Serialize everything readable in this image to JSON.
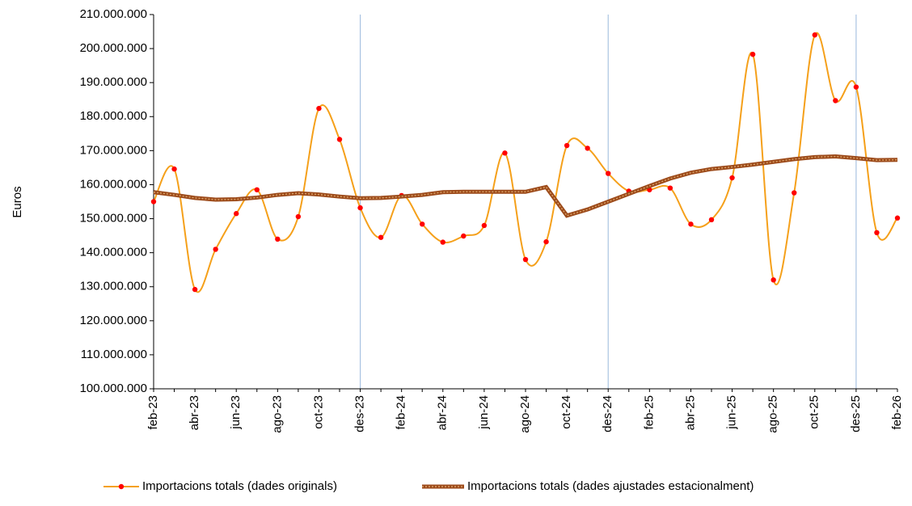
{
  "chart_data": {
    "type": "line",
    "ylabel": "Euros",
    "categories": [
      "feb-23",
      null,
      "abr-23",
      null,
      "jun-23",
      null,
      "ago-23",
      null,
      "oct-23",
      null,
      "des-23",
      null,
      "feb-24",
      null,
      "abr-24",
      null,
      "jun-24",
      null,
      "ago-24",
      null,
      "oct-24",
      null,
      "des-24",
      null,
      "feb-25",
      null,
      "abr-25",
      null,
      "jun-25",
      null,
      "ago-25",
      null,
      "oct-25",
      null,
      "des-25",
      null,
      "feb-26"
    ],
    "series": [
      {
        "name": "Importacions totals (dades originals)",
        "color": "#f5a01a",
        "marker_color": "#ff0000",
        "smooth": true,
        "values": [
          155000000,
          164600000,
          129200000,
          141000000,
          151500000,
          158500000,
          144000000,
          150600000,
          182400000,
          173300000,
          153200000,
          144500000,
          156800000,
          148400000,
          143100000,
          144900000,
          148000000,
          169300000,
          138000000,
          143200000,
          171500000,
          170700000,
          163300000,
          158100000,
          158500000,
          159000000,
          148400000,
          149700000,
          162000000,
          198300000,
          132000000,
          157600000,
          204000000,
          184700000,
          188700000,
          145900000,
          150200000
        ]
      },
      {
        "name": "Importacions totals (dades ajustades estacionalment)",
        "color": "#9c4a1a",
        "dash_color": "#d9a066",
        "smooth": false,
        "values": [
          157800000,
          157000000,
          156100000,
          155600000,
          155700000,
          156200000,
          157000000,
          157500000,
          157100000,
          156500000,
          156000000,
          156100000,
          156500000,
          157000000,
          157800000,
          157900000,
          157900000,
          157900000,
          157900000,
          159300000,
          150900000,
          152700000,
          155000000,
          157300000,
          159600000,
          161800000,
          163500000,
          164600000,
          165200000,
          165900000,
          166700000,
          167500000,
          168100000,
          168300000,
          167800000,
          167200000,
          167300000
        ]
      }
    ],
    "ylim": [
      100000000,
      210000000
    ],
    "yticks": [
      {
        "value": 100000000,
        "label": "100.000.000"
      },
      {
        "value": 110000000,
        "label": "110.000.000"
      },
      {
        "value": 120000000,
        "label": "120.000.000"
      },
      {
        "value": 130000000,
        "label": "130.000.000"
      },
      {
        "value": 140000000,
        "label": "140.000.000"
      },
      {
        "value": 150000000,
        "label": "150.000.000"
      },
      {
        "value": 160000000,
        "label": "160.000.000"
      },
      {
        "value": 170000000,
        "label": "170.000.000"
      },
      {
        "value": 180000000,
        "label": "180.000.000"
      },
      {
        "value": 190000000,
        "label": "190.000.000"
      },
      {
        "value": 200000000,
        "label": "200.000.000"
      },
      {
        "value": 210000000,
        "label": "210.000.000"
      }
    ],
    "grid": false,
    "legend": "bottom"
  }
}
